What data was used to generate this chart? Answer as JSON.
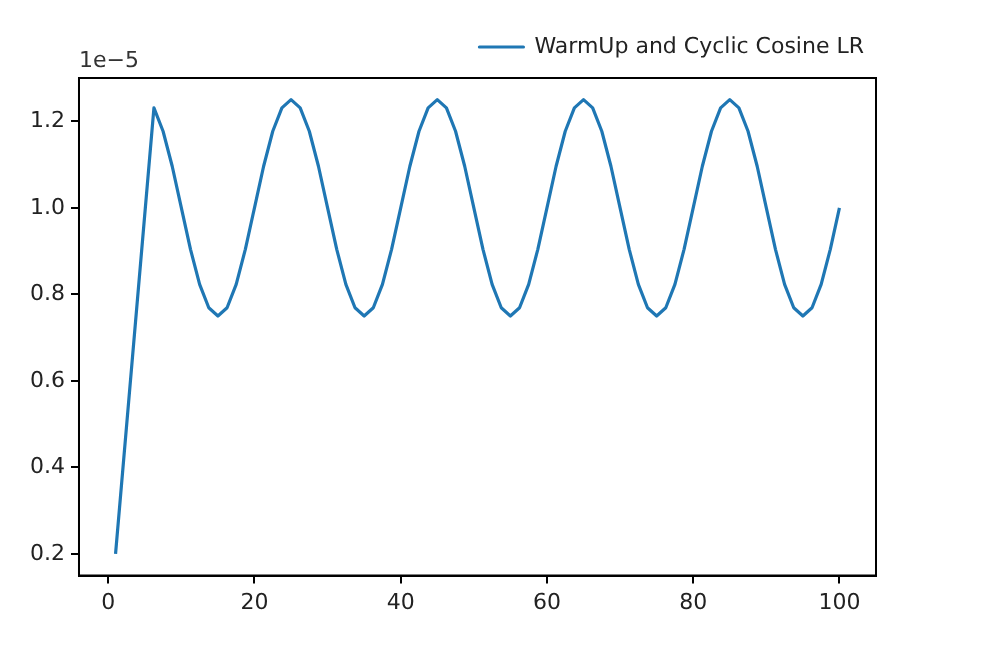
{
  "chart_data": {
    "type": "line",
    "annotations": [
      "1e−5"
    ],
    "series": [
      {
        "name": "WarmUp and Cyclic Cosine LR",
        "color": "#1f77b4",
        "x": [
          1,
          6.25,
          7.5,
          8.75,
          10,
          11.25,
          12.5,
          13.75,
          15,
          16.25,
          17.5,
          18.75,
          20,
          21.25,
          22.5,
          23.75,
          25,
          26.25,
          27.5,
          28.75,
          30,
          31.25,
          32.5,
          33.75,
          35,
          36.25,
          37.5,
          38.75,
          40,
          41.25,
          42.5,
          43.75,
          45,
          46.25,
          47.5,
          48.75,
          50,
          51.25,
          52.5,
          53.75,
          55,
          56.25,
          57.5,
          58.75,
          60,
          61.25,
          62.5,
          63.75,
          65,
          66.25,
          67.5,
          68.75,
          70,
          71.25,
          72.5,
          73.75,
          75,
          76.25,
          77.5,
          78.75,
          80,
          81.25,
          82.5,
          83.75,
          85,
          86.25,
          87.5,
          88.75,
          90,
          91.25,
          92.5,
          93.75,
          95,
          96.25,
          97.5,
          98.75,
          100
        ],
        "values": [
          0.2,
          1.231,
          1.177,
          1.096,
          1.0,
          0.904,
          0.823,
          0.769,
          0.75,
          0.769,
          0.823,
          0.904,
          1.0,
          1.096,
          1.177,
          1.231,
          1.25,
          1.231,
          1.177,
          1.096,
          1.0,
          0.904,
          0.823,
          0.769,
          0.75,
          0.769,
          0.823,
          0.904,
          1.0,
          1.096,
          1.177,
          1.231,
          1.25,
          1.231,
          1.177,
          1.096,
          1.0,
          0.904,
          0.823,
          0.769,
          0.75,
          0.769,
          0.823,
          0.904,
          1.0,
          1.096,
          1.177,
          1.231,
          1.25,
          1.231,
          1.177,
          1.096,
          1.0,
          0.904,
          0.823,
          0.769,
          0.75,
          0.769,
          0.823,
          0.904,
          1.0,
          1.096,
          1.177,
          1.231,
          1.25,
          1.231,
          1.177,
          1.096,
          1.0,
          0.904,
          0.823,
          0.769,
          0.75,
          0.769,
          0.823,
          0.904,
          1.0
        ]
      }
    ],
    "xlim": [
      -4,
      105
    ],
    "xticks": [
      0,
      20,
      40,
      60,
      80,
      100
    ],
    "ylim": [
      0.15,
      1.3
    ],
    "yticks": [
      0.2,
      0.4,
      0.6,
      0.8,
      {
        "value": 1,
        "label": "1.0"
      },
      1.2
    ],
    "grid": false,
    "legend": "top right",
    "marker": "none",
    "line_style": "solid"
  }
}
